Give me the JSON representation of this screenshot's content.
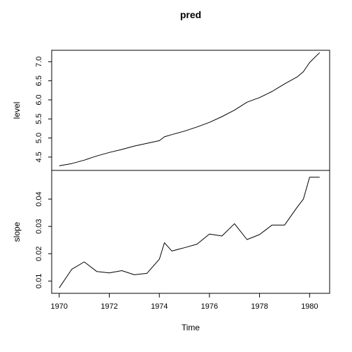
{
  "chart_data": {
    "type": "line",
    "title": "pred",
    "xlabel": "Time",
    "xlim": [
      1969.7,
      1980.8
    ],
    "x_ticks": [
      1970,
      1972,
      1974,
      1976,
      1978,
      1980
    ],
    "x_tick_labels": [
      "1970",
      "1972",
      "1974",
      "1976",
      "1978",
      "1980"
    ],
    "x": [
      1970.0,
      1970.5,
      1971.0,
      1971.5,
      1972.0,
      1972.5,
      1973.0,
      1973.5,
      1974.0,
      1974.2,
      1974.5,
      1975.0,
      1975.5,
      1976.0,
      1976.5,
      1977.0,
      1977.5,
      1978.0,
      1978.5,
      1979.0,
      1979.5,
      1979.75,
      1980.0,
      1980.4
    ],
    "panels": [
      {
        "name": "level",
        "ylabel": "level",
        "ylim": [
          4.15,
          7.3
        ],
        "y_ticks": [
          4.5,
          5.0,
          5.5,
          6.0,
          6.5,
          7.0
        ],
        "y_tick_labels": [
          "4.5",
          "5.0",
          "5.5",
          "6.0",
          "6.5",
          "7.0"
        ],
        "values": [
          4.27,
          4.33,
          4.42,
          4.53,
          4.62,
          4.7,
          4.79,
          4.86,
          4.93,
          5.03,
          5.09,
          5.18,
          5.29,
          5.41,
          5.56,
          5.73,
          5.94,
          6.06,
          6.22,
          6.42,
          6.6,
          6.74,
          6.98,
          7.24
        ]
      },
      {
        "name": "slope",
        "ylabel": "slope",
        "ylim": [
          0.0055,
          0.0505
        ],
        "y_ticks": [
          0.01,
          0.02,
          0.03,
          0.04
        ],
        "y_tick_labels": [
          "0.01",
          "0.02",
          "0.03",
          "0.04"
        ],
        "values": [
          0.0075,
          0.0143,
          0.017,
          0.0135,
          0.013,
          0.0138,
          0.0123,
          0.0128,
          0.018,
          0.024,
          0.021,
          0.0222,
          0.0235,
          0.0272,
          0.0265,
          0.031,
          0.0252,
          0.027,
          0.0305,
          0.0305,
          0.037,
          0.04,
          0.048,
          0.048
        ]
      }
    ]
  }
}
